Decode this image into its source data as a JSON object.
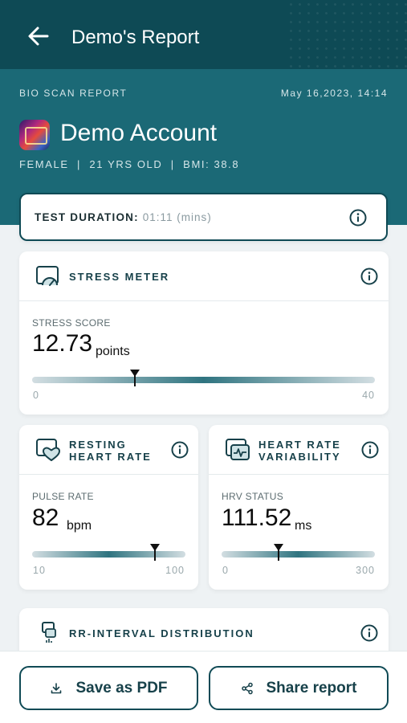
{
  "header": {
    "title": "Demo's Report"
  },
  "report": {
    "label": "BIO SCAN REPORT",
    "date": "May 16,2023, 14:14",
    "name": "Demo Account",
    "meta": "FEMALE  |  21 YRS OLD  |  BMI: 38.8"
  },
  "duration": {
    "label": "TEST DURATION:",
    "value": "01:11 (mins)"
  },
  "stress": {
    "title": "STRESS METER",
    "sub_label": "STRESS SCORE",
    "value": "12.73",
    "unit": "points",
    "min": "0",
    "max": "40",
    "level": 0.3
  },
  "heart_rate": {
    "title_line1": "RESTING",
    "title_line2": "HEART RATE",
    "sub_label": "PULSE RATE",
    "value": "82",
    "unit": "bpm",
    "min": "10",
    "max": "100",
    "level": 0.8
  },
  "hrv": {
    "title_line1": "HEART RATE",
    "title_line2": "VARIABILITY",
    "sub_label": "HRV STATUS",
    "value": "111.52",
    "unit": "ms",
    "min": "0",
    "max": "300",
    "level": 0.37
  },
  "rr": {
    "title": "RR-INTERVAL DISTRIBUTION"
  },
  "actions": {
    "save_label": "Save as PDF",
    "share_label": "Share report"
  },
  "colors": {
    "primary": "#0f4a55",
    "hero": "#1b6976",
    "accent": "#17414a"
  },
  "icons": [
    "back-arrow-icon",
    "info-icon",
    "gauge-icon",
    "heart-icon",
    "pulse-chart-icon",
    "rr-icon",
    "download-icon",
    "share-icon"
  ]
}
